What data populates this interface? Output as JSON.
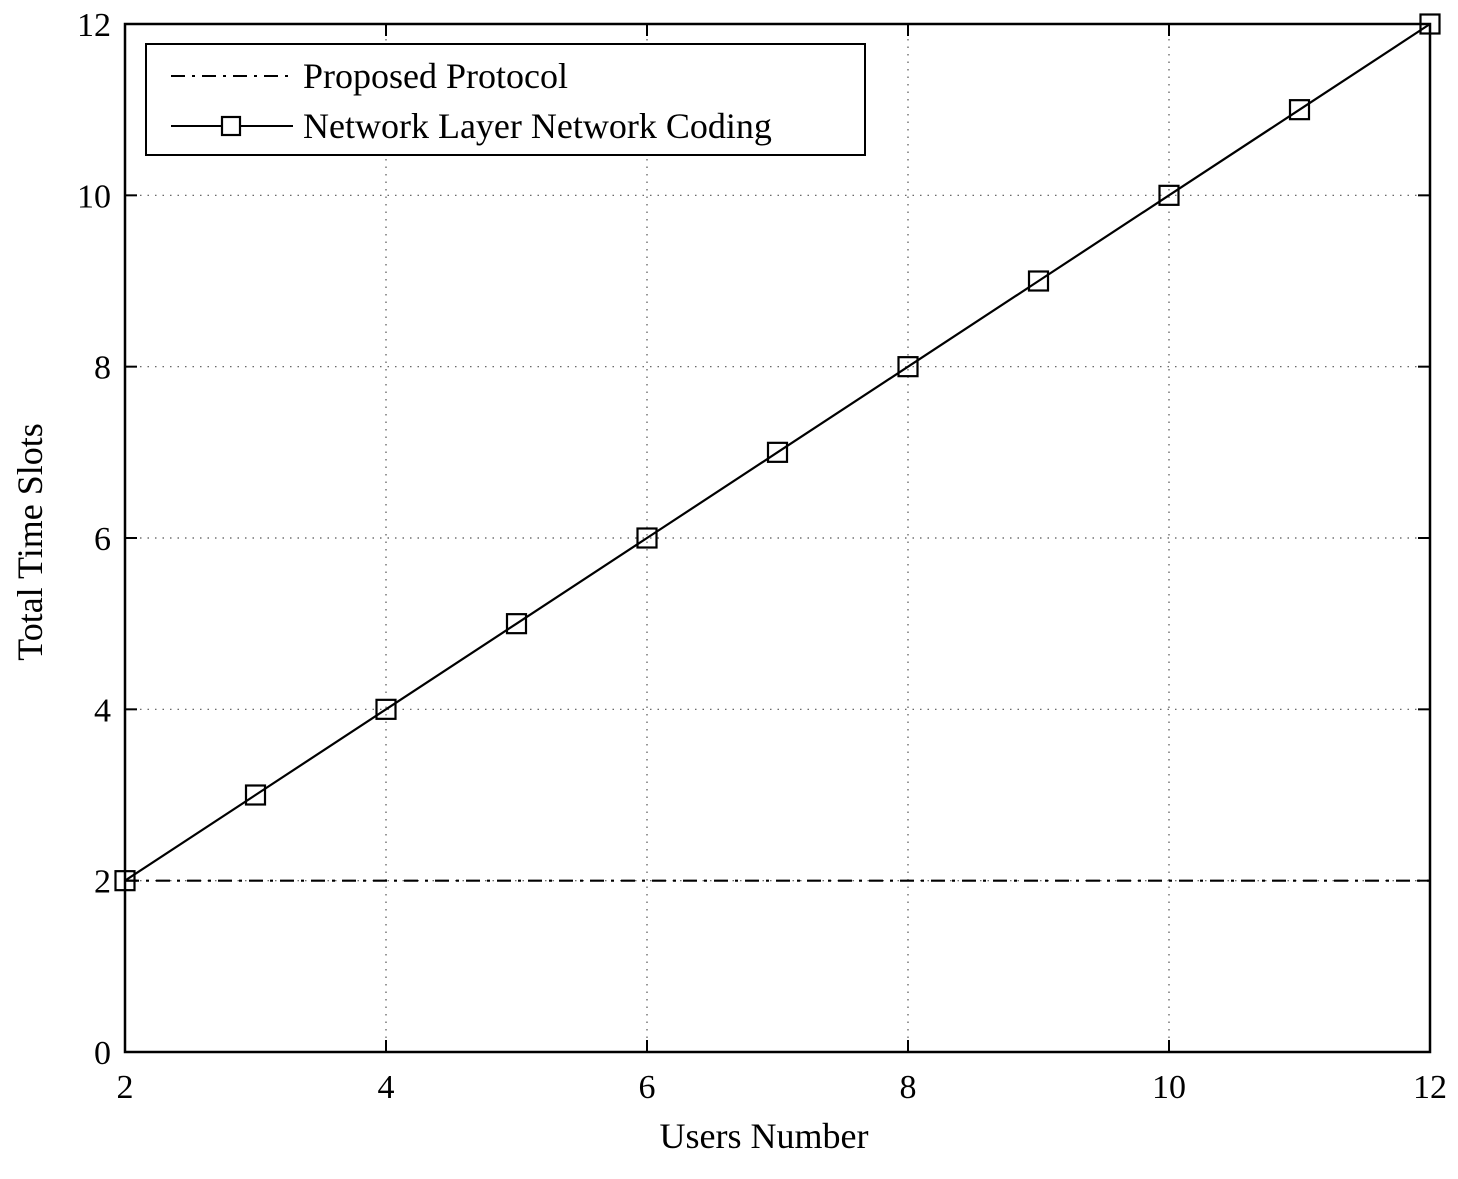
{
  "chart_data": {
    "type": "line",
    "title": "",
    "xlabel": "Users Number",
    "ylabel": "Total Time Slots",
    "xlim": [
      2,
      12
    ],
    "ylim": [
      0,
      12
    ],
    "xticks": [
      2,
      4,
      6,
      8,
      10,
      12
    ],
    "yticks": [
      0,
      2,
      4,
      6,
      8,
      10,
      12
    ],
    "x_tick_labels": [
      "2",
      "4",
      "6",
      "8",
      "10",
      "12"
    ],
    "y_tick_labels": [
      "0",
      "2",
      "4",
      "6",
      "8",
      "10",
      "12"
    ],
    "grid": true,
    "legend_position": "top-left",
    "series": [
      {
        "name": "Proposed Protocol",
        "line_style": "dash-dot",
        "marker": "none",
        "color": "#000000",
        "x": [
          2,
          3,
          4,
          5,
          6,
          7,
          8,
          9,
          10,
          11,
          12
        ],
        "y": [
          2,
          2,
          2,
          2,
          2,
          2,
          2,
          2,
          2,
          2,
          2
        ]
      },
      {
        "name": "Network Layer Network Coding",
        "line_style": "solid",
        "marker": "square",
        "color": "#000000",
        "x": [
          2,
          3,
          4,
          5,
          6,
          7,
          8,
          9,
          10,
          11,
          12
        ],
        "y": [
          2,
          3,
          4,
          5,
          6,
          7,
          8,
          9,
          10,
          11,
          12
        ]
      }
    ]
  }
}
